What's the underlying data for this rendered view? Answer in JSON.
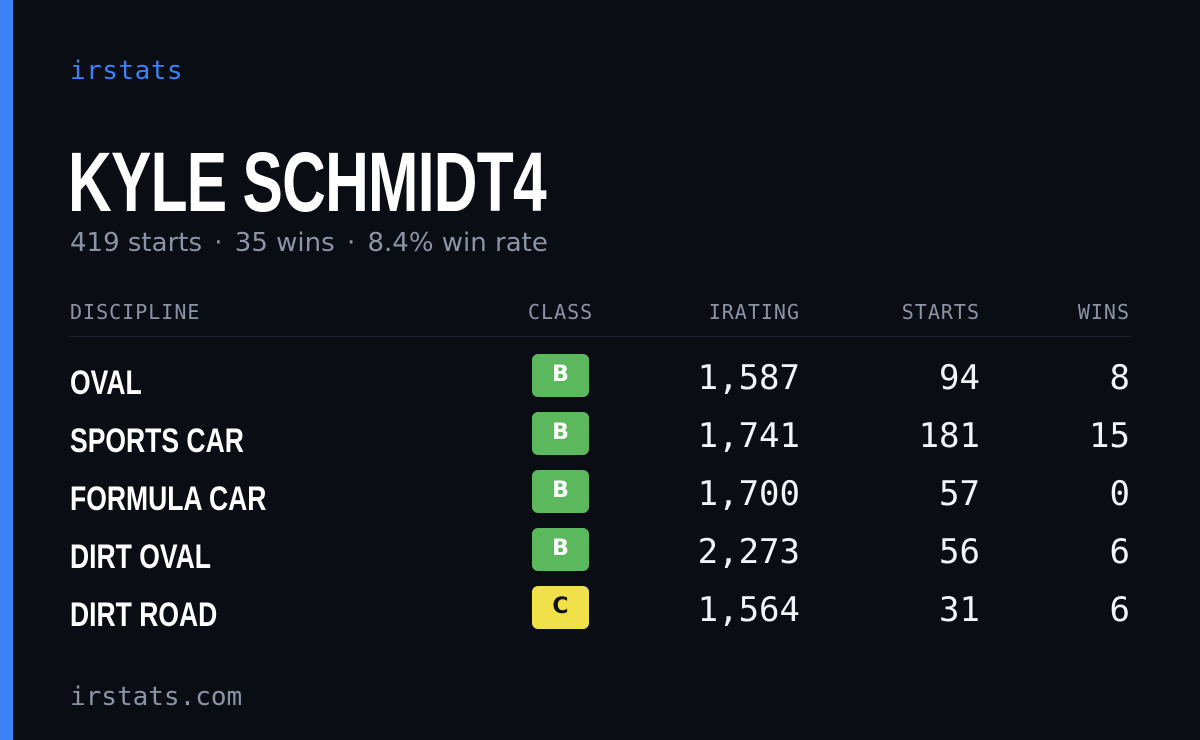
{
  "brand": "irstats",
  "player": {
    "name": "KYLE SCHMIDT4",
    "starts_text": "419 starts",
    "wins_text": "35 wins",
    "win_rate_text": "8.4% win rate",
    "separator": "·"
  },
  "table": {
    "headers": {
      "discipline": "DISCIPLINE",
      "class": "CLASS",
      "irating": "IRATING",
      "starts": "STARTS",
      "wins": "WINS"
    },
    "rows": [
      {
        "discipline": "OVAL",
        "class": "B",
        "irating": "1,587",
        "starts": "94",
        "wins": "8"
      },
      {
        "discipline": "SPORTS CAR",
        "class": "B",
        "irating": "1,741",
        "starts": "181",
        "wins": "15"
      },
      {
        "discipline": "FORMULA CAR",
        "class": "B",
        "irating": "1,700",
        "starts": "57",
        "wins": "0"
      },
      {
        "discipline": "DIRT OVAL",
        "class": "B",
        "irating": "2,273",
        "starts": "56",
        "wins": "6"
      },
      {
        "discipline": "DIRT ROAD",
        "class": "C",
        "irating": "1,564",
        "starts": "31",
        "wins": "6"
      }
    ]
  },
  "footer": {
    "url": "irstats.com"
  },
  "colors": {
    "background": "#0a0d14",
    "accent": "#3b82f6",
    "class_b": "#5cb85c",
    "class_c": "#f0e14a",
    "muted_text": "#8b94a5"
  }
}
